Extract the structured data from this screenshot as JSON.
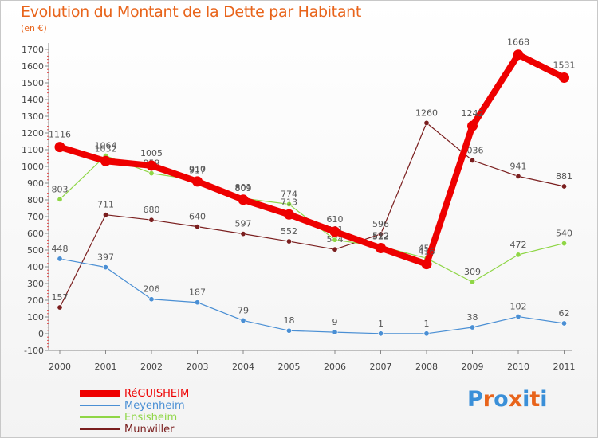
{
  "header": {
    "title": "Evolution du Montant de la Dette par Habitant",
    "subtitle": "(en €)"
  },
  "brand": {
    "text": "Proxiti",
    "colors": [
      "#3a8fd8",
      "#e8641b",
      "#3a8fd8",
      "#e8641b",
      "#3a8fd8",
      "#e8641b",
      "#3a8fd8"
    ]
  },
  "chart_data": {
    "type": "line",
    "title": "Evolution du Montant de la Dette par Habitant",
    "ylabel": "(en €)",
    "xlabel": "",
    "ylim": [
      -100,
      1700
    ],
    "yticks": [
      -100,
      0,
      100,
      200,
      300,
      400,
      500,
      600,
      700,
      800,
      900,
      1000,
      1100,
      1200,
      1300,
      1400,
      1500,
      1600,
      1700
    ],
    "grid": false,
    "legend_position": "bottom-left",
    "categories": [
      "2000",
      "2001",
      "2002",
      "2003",
      "2004",
      "2005",
      "2006",
      "2007",
      "2008",
      "2009",
      "2010",
      "2011"
    ],
    "series": [
      {
        "name": "Munwiller",
        "color": "#7a1e1e",
        "values": [
          157,
          711,
          680,
          640,
          597,
          552,
          504,
          596,
          1260,
          1036,
          941,
          881
        ]
      },
      {
        "name": "Ensisheim",
        "color": "#8fd646",
        "values": [
          803,
          1064,
          959,
          917,
          809,
          774,
          561,
          522,
          451,
          309,
          472,
          540
        ]
      },
      {
        "name": "Meyenheim",
        "color": "#4a8fd4",
        "values": [
          448,
          397,
          206,
          187,
          79,
          18,
          9,
          1,
          1,
          38,
          102,
          62
        ]
      },
      {
        "name": "RéGUISHEIM",
        "color": "#ee0000",
        "values": [
          1116,
          1032,
          1005,
          910,
          801,
          713,
          610,
          512,
          416,
          1242,
          1668,
          1531
        ]
      }
    ]
  }
}
